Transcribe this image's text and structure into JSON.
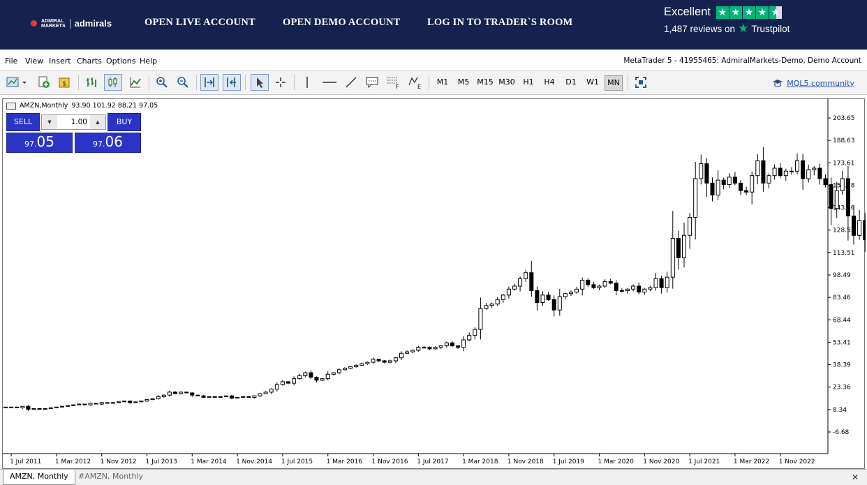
{
  "banner": {
    "brand_top": "ADMIRAL",
    "brand_bottom": "MARKETS",
    "brand_main": "admirals",
    "links": [
      "OPEN LIVE ACCOUNT",
      "OPEN DEMO ACCOUNT",
      "LOG IN TO TRADER`S ROOM"
    ],
    "trustpilot": {
      "rating_word": "Excellent",
      "reviews": "1,487 reviews on",
      "brand": "Trustpilot",
      "stars": 4.5
    }
  },
  "menu": {
    "items": [
      "File",
      "View",
      "Insert",
      "Charts",
      "Options",
      "Help"
    ],
    "account": "MetaTrader 5 - 41955465: AdmiralMarkets-Demo, Demo Account"
  },
  "toolbar": {
    "icons": [
      "new-chart-icon",
      "new-order-icon",
      "market-watch-icon",
      "bar-chart-icon",
      "candlestick-icon",
      "line-chart-icon",
      "zoom-in-icon",
      "zoom-out-icon",
      "autoscroll-icon",
      "chart-shift-icon",
      "cursor-icon",
      "crosshair-icon",
      "vertical-line-icon",
      "horizontal-line-icon",
      "trendline-icon",
      "text-icon",
      "fibonacci-icon",
      "elliott-icon"
    ],
    "timeframes": [
      "M1",
      "M5",
      "M15",
      "M30",
      "H1",
      "H4",
      "D1",
      "W1",
      "MN"
    ],
    "active_timeframe": "MN",
    "community": "MQL5.community"
  },
  "chart": {
    "title": "AMZN,Monthly",
    "ohlc": "93.90 101.92 88.21 97.05",
    "sell_label": "SELL",
    "buy_label": "BUY",
    "lot": "1.00",
    "sell_price_small": "97.",
    "sell_price_big": "05",
    "buy_price_small": "97.",
    "buy_price_big": "06"
  },
  "tabs": [
    "AMZN, Monthly",
    "#AMZN, Monthly"
  ],
  "colors": {
    "banner": "#14224f",
    "trade_blue": "#2a35c6",
    "trustpilot_green": "#00b67a"
  },
  "chart_data": {
    "type": "candlestick",
    "symbol": "AMZN",
    "timeframe": "Monthly",
    "start": "2011-06",
    "x_tick_labels": [
      "1 Jul 2011",
      "1 Mar 2012",
      "1 Nov 2012",
      "1 Jul 2013",
      "1 Mar 2014",
      "1 Nov 2014",
      "1 Jul 2015",
      "1 Mar 2016",
      "1 Nov 2016",
      "1 Jul 2017",
      "1 Mar 2018",
      "1 Nov 2018",
      "1 Jul 2019",
      "1 Mar 2020",
      "1 Nov 2020",
      "1 Jul 2021",
      "1 Mar 2022",
      "1 Nov 2022"
    ],
    "y_tick_labels": [
      "203.65",
      "188.63",
      "173.61",
      "158.58",
      "143.56",
      "128.53",
      "113.51",
      "98.49",
      "83.46",
      "68.44",
      "53.41",
      "38.39",
      "23.36",
      "8.34",
      "-6.68"
    ],
    "ylim": [
      -6.68,
      203.65
    ],
    "grid": false,
    "closes": [
      10,
      10,
      9.5,
      10.5,
      8.5,
      9,
      8.5,
      9,
      9.5,
      10,
      10.5,
      11,
      11.5,
      12,
      11.5,
      12.5,
      12,
      13,
      12.5,
      13,
      13.5,
      14,
      13,
      13.5,
      14,
      15,
      15.5,
      17,
      18,
      20,
      19,
      20,
      19.5,
      18,
      17.5,
      16.5,
      17,
      16.5,
      17,
      17.5,
      16,
      16.5,
      17,
      16.5,
      17.5,
      19,
      20,
      22,
      25,
      27,
      26,
      29,
      31,
      33,
      30,
      28,
      29,
      32,
      33,
      35,
      36,
      37,
      38,
      39,
      40,
      42,
      41,
      40,
      41,
      43,
      46,
      47,
      48,
      50,
      50,
      49,
      50,
      51,
      53,
      51,
      50,
      55,
      58,
      62,
      76,
      78,
      79,
      82,
      85,
      89,
      91,
      96,
      100,
      88,
      80,
      85,
      82,
      75,
      84,
      86,
      87,
      89,
      95,
      92,
      90,
      91,
      94,
      93,
      88,
      88,
      89,
      91,
      87,
      89,
      90,
      96,
      90,
      97,
      123,
      110,
      125,
      137,
      163,
      173,
      160,
      152,
      162,
      159,
      164,
      160,
      155,
      154,
      165,
      175,
      160,
      165,
      170,
      165,
      168,
      168,
      175,
      163,
      169,
      170,
      163,
      159,
      143,
      155,
      163,
      138,
      125,
      135,
      122,
      110,
      106,
      116,
      113,
      105,
      96,
      85,
      93,
      103,
      91,
      97
    ]
  }
}
